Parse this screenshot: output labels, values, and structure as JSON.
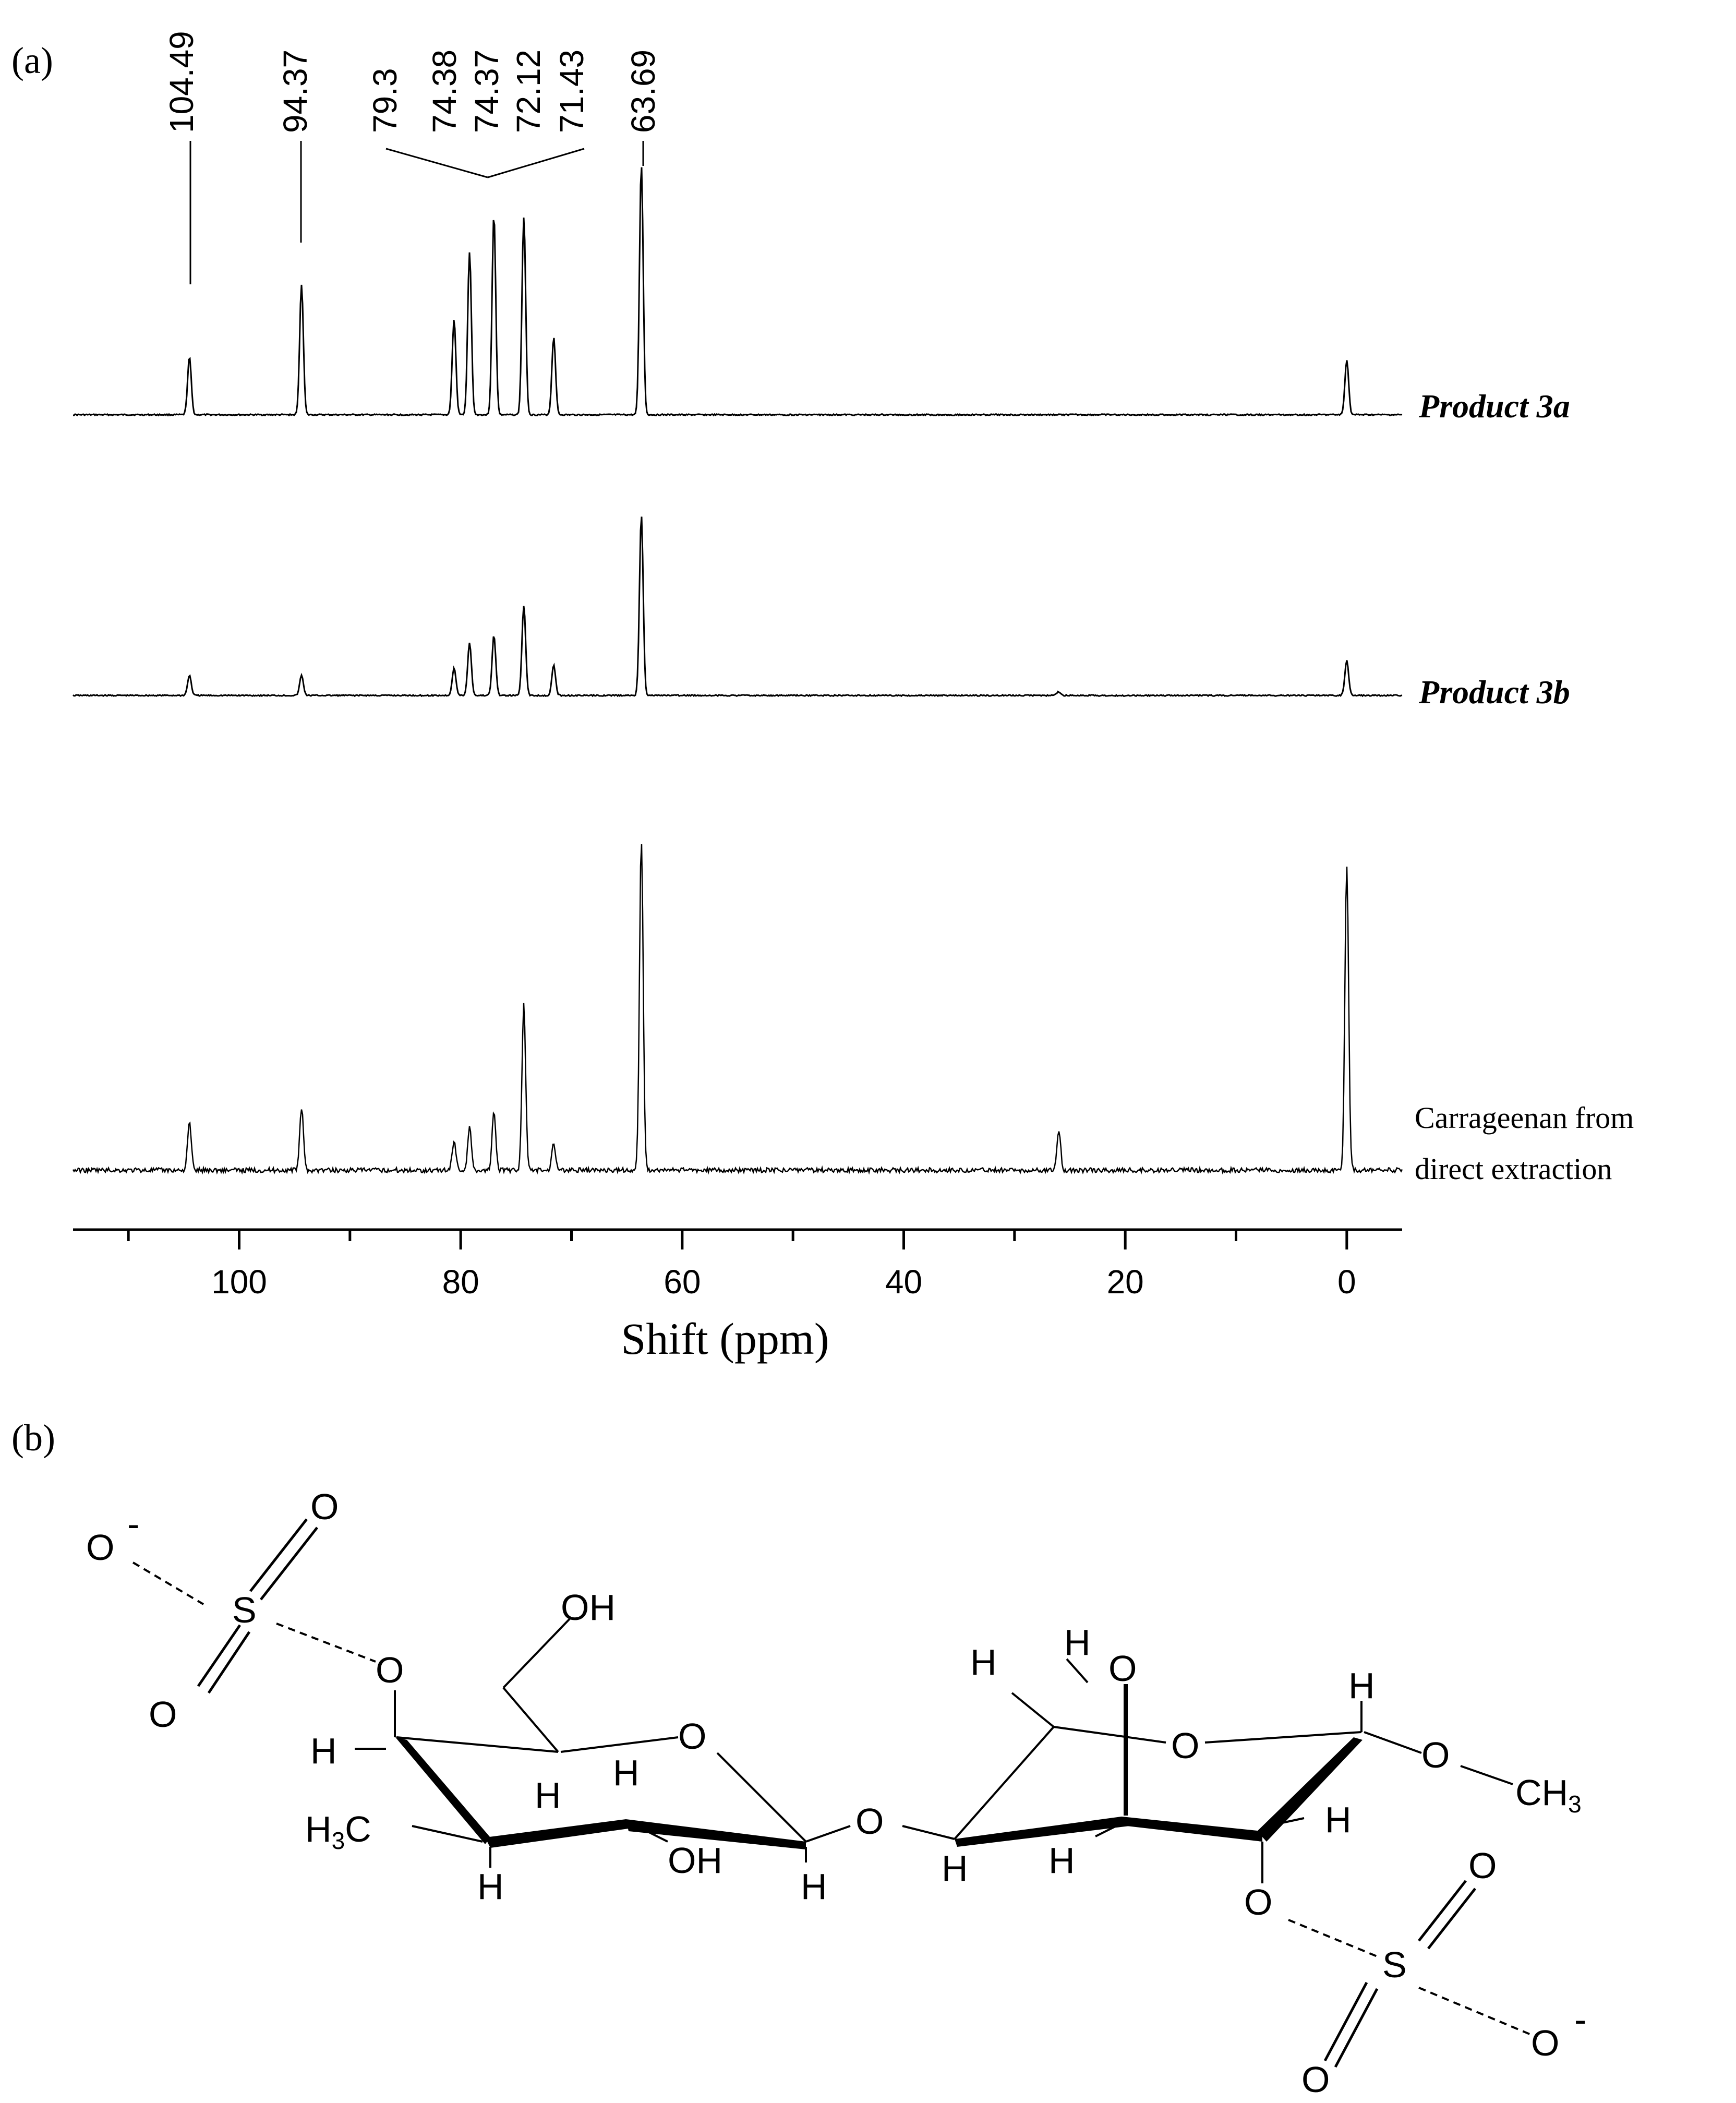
{
  "panel_a_label": "(a)",
  "panel_b_label": "(b)",
  "chart_data": {
    "type": "line",
    "title": "",
    "xlabel": "Shift (ppm)",
    "ylabel": "",
    "xlim": [
      115,
      -5
    ],
    "x_reversed": true,
    "x_ticks": [
      100,
      80,
      60,
      40,
      20,
      0
    ],
    "x_tick_labels": [
      "100",
      "80",
      "60",
      "40",
      "20",
      "0"
    ],
    "grid": false,
    "peak_labels": [
      "104.49",
      "94.37",
      "79.3",
      "74.38",
      "74.37",
      "72.12",
      "71.43",
      "63.69"
    ],
    "series": [
      {
        "name": "Product 3a",
        "peaks": [
          {
            "shift": 104.49,
            "height": 0.23
          },
          {
            "shift": 94.37,
            "height": 0.52
          },
          {
            "shift": 80.6,
            "height": 0.38
          },
          {
            "shift": 79.2,
            "height": 0.65
          },
          {
            "shift": 77.0,
            "height": 0.8
          },
          {
            "shift": 74.3,
            "height": 0.79
          },
          {
            "shift": 71.6,
            "height": 0.31
          },
          {
            "shift": 63.69,
            "height": 1.0
          },
          {
            "shift": 0.0,
            "height": 0.22
          }
        ]
      },
      {
        "name": "Product 3b",
        "peaks": [
          {
            "shift": 104.49,
            "height": 0.08
          },
          {
            "shift": 94.37,
            "height": 0.08
          },
          {
            "shift": 80.6,
            "height": 0.11
          },
          {
            "shift": 79.2,
            "height": 0.21
          },
          {
            "shift": 77.0,
            "height": 0.24
          },
          {
            "shift": 74.3,
            "height": 0.36
          },
          {
            "shift": 71.6,
            "height": 0.12
          },
          {
            "shift": 63.69,
            "height": 0.72
          },
          {
            "shift": 26.0,
            "height": 0.015
          },
          {
            "shift": 0.0,
            "height": 0.14
          }
        ]
      },
      {
        "name": "Carrageenan from direct extraction",
        "peaks": [
          {
            "shift": 104.49,
            "height": 0.19
          },
          {
            "shift": 94.37,
            "height": 0.25
          },
          {
            "shift": 80.6,
            "height": 0.12
          },
          {
            "shift": 79.2,
            "height": 0.17
          },
          {
            "shift": 77.0,
            "height": 0.24
          },
          {
            "shift": 74.3,
            "height": 0.66
          },
          {
            "shift": 71.6,
            "height": 0.11
          },
          {
            "shift": 63.69,
            "height": 1.32
          },
          {
            "shift": 26.0,
            "height": 0.16
          },
          {
            "shift": 0.0,
            "height": 1.22
          }
        ]
      }
    ]
  },
  "trace_labels": {
    "product_3a": "Product 3a",
    "product_3b": "Product 3b",
    "carrageenan_line1": "Carrageenan from",
    "carrageenan_line2": "direct extraction"
  },
  "structure": {
    "atoms": {
      "o_minus_left": "O",
      "o_top_left": "O",
      "s_left": "S",
      "o_left_bottom": "O",
      "o_link_left": "O",
      "oh_top": "OH",
      "h_left_1": "H",
      "h3c": "H3C",
      "h_ring_1": "H",
      "h_ring_2": "H",
      "oh_mid": "OH",
      "h_bottom_1": "H",
      "h_anomeric_left": "H",
      "o_ring_left": "O",
      "o_glyco": "O",
      "h_anomeric_right": "H",
      "h_ring_3": "H",
      "h_ch2_1": "H",
      "h_ch2_2": "H",
      "o_bridge": "O",
      "o_ring_right": "O",
      "h_right_top": "H",
      "o_methoxy": "O",
      "ch3": "CH3",
      "h_right_ring": "H",
      "o_link_right": "O",
      "s_right": "S",
      "o_right_top": "O",
      "o_right_bottom": "O",
      "o_minus_right": "O"
    },
    "charge_symbol": "-"
  }
}
